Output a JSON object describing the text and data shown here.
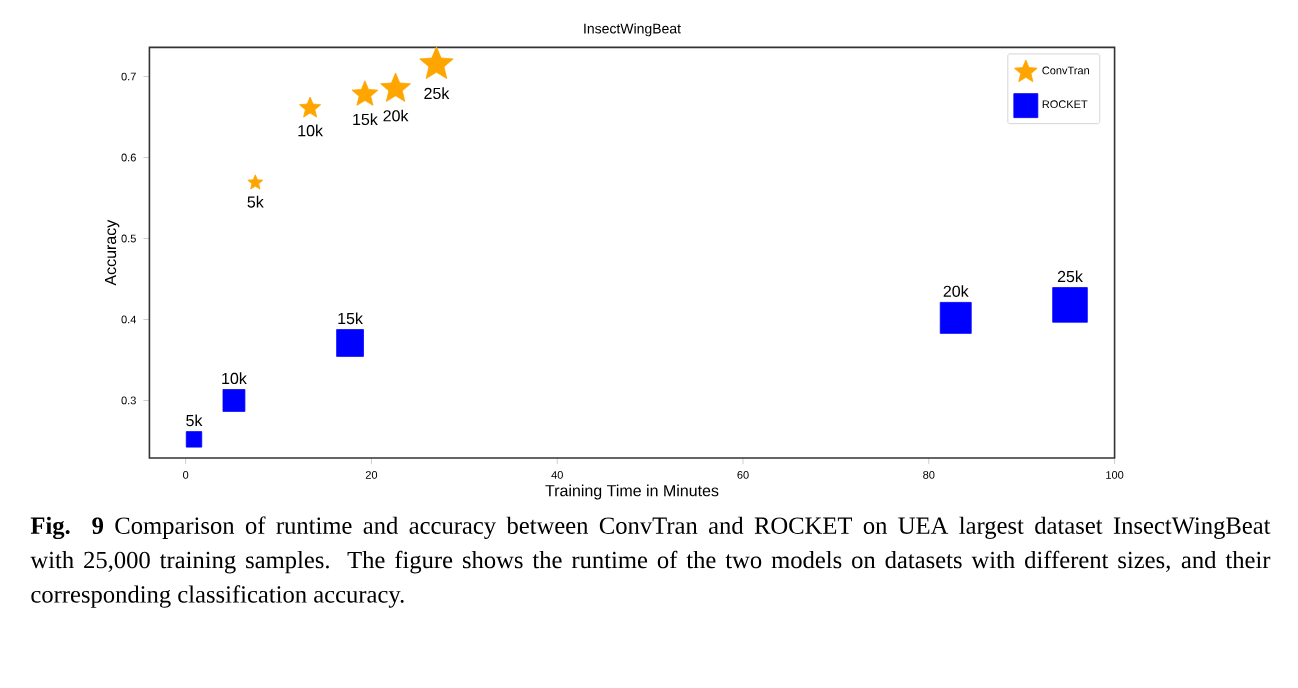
{
  "chart_data": {
    "type": "bubble",
    "title": "InsectWingBeat",
    "xlabel": "Training Time in Minutes",
    "ylabel": "Accuracy",
    "xlim": [
      -3.9,
      100
    ],
    "ylim": [
      0.229,
      0.736
    ],
    "xticks": [
      0,
      20,
      40,
      60,
      80,
      100
    ],
    "yticks": [
      0.3,
      0.4,
      0.5,
      0.6,
      0.7
    ],
    "legend": "top right",
    "series": [
      {
        "name": "ConvTran",
        "color": "#ffa500",
        "marker": "star",
        "x": [
          7.5,
          13.4,
          19.3,
          22.6,
          27.0
        ],
        "values": [
          0.569,
          0.661,
          0.678,
          0.685,
          0.715
        ],
        "sizes": [
          0.068,
          0.136,
          0.204,
          0.272,
          0.34
        ]
      },
      {
        "name": "ROCKET",
        "color": "#0000ff",
        "marker": "square",
        "x": [
          0.9,
          5.2,
          17.7,
          82.9,
          95.2
        ],
        "values": [
          0.252,
          0.3,
          0.371,
          0.402,
          0.418
        ],
        "sizes": [
          0.2,
          0.4,
          0.6,
          0.8,
          1
        ]
      }
    ],
    "annotations": [
      {
        "text": "5k",
        "x": 7.5,
        "y": 0.569
      },
      {
        "text": "10k",
        "x": 13.4,
        "y": 0.661
      },
      {
        "text": "15k",
        "x": 19.3,
        "y": 0.678
      },
      {
        "text": "20k",
        "x": 22.6,
        "y": 0.685
      },
      {
        "text": "25k",
        "x": 27.0,
        "y": 0.715
      },
      {
        "text": "5k",
        "x": 0.9,
        "y": 0.252
      },
      {
        "text": "10k",
        "x": 5.2,
        "y": 0.3
      },
      {
        "text": "15k",
        "x": 17.7,
        "y": 0.371
      },
      {
        "text": "20k",
        "x": 82.9,
        "y": 0.402
      },
      {
        "text": "25k",
        "x": 95.2,
        "y": 0.418
      },
      "**Fig. 9** Comparison of runtime and accuracy between ConvTran and ROCKET on UEA largest dataset InsectWingBeat with 25,000 training samples. The figure shows the runtime of the two models on datasets with different sizes, and their corresponding classification accuracy."
    ]
  }
}
